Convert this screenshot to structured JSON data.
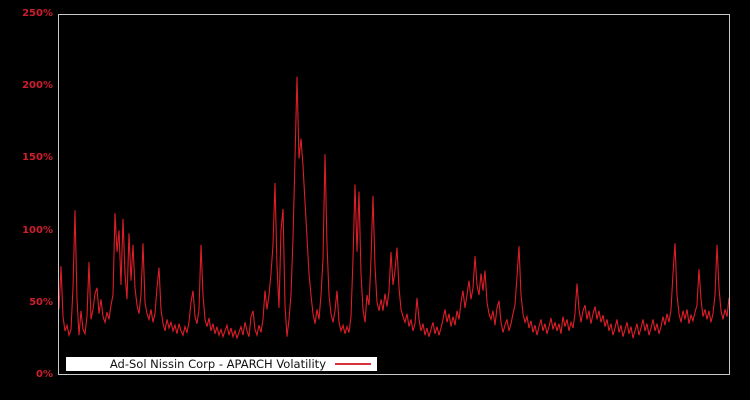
{
  "figure": {
    "background_color": "#000000",
    "plot_border_color": "#c9c9c9"
  },
  "y_axis": {
    "tick_color": "#cf1f2e",
    "ticks": [
      {
        "label": "0%",
        "value": 0
      },
      {
        "label": "50%",
        "value": 50
      },
      {
        "label": "100%",
        "value": 100
      },
      {
        "label": "150%",
        "value": 150
      },
      {
        "label": "200%",
        "value": 200
      },
      {
        "label": "250%",
        "value": 250
      }
    ]
  },
  "legend": {
    "label": "Ad-Sol Nissin Corp - APARCH Volatility",
    "background": "#ffffff",
    "text_color": "#111111",
    "sample_line_color": "#d8333c",
    "position": "bottom-left-inside"
  },
  "chart_data": {
    "type": "line",
    "ylabel": "",
    "xlabel": "",
    "ylim": [
      0,
      250
    ],
    "y_unit": "percent",
    "y_tick_labels": [
      "0%",
      "50%",
      "100%",
      "150%",
      "200%",
      "250%"
    ],
    "x_tick_labels": [],
    "grid": false,
    "legend_position": "bottom-left-inside",
    "series": [
      {
        "name": "Ad-Sol Nissin Corp - APARCH Volatility",
        "color": "#dc1e28",
        "line_width": 1,
        "values": [
          45,
          75,
          40,
          30,
          34,
          27,
          31,
          60,
          114,
          52,
          27,
          44,
          31,
          28,
          40,
          78,
          38,
          45,
          56,
          60,
          42,
          52,
          40,
          36,
          43,
          38,
          48,
          55,
          112,
          85,
          100,
          62,
          108,
          70,
          52,
          98,
          65,
          90,
          60,
          48,
          42,
          55,
          91,
          50,
          42,
          38,
          45,
          36,
          42,
          60,
          74,
          45,
          35,
          30,
          38,
          32,
          36,
          30,
          34,
          28,
          35,
          30,
          27,
          33,
          29,
          36,
          50,
          58,
          40,
          35,
          45,
          90,
          55,
          38,
          33,
          39,
          30,
          35,
          28,
          33,
          27,
          31,
          26,
          30,
          34,
          27,
          32,
          26,
          30,
          25,
          29,
          33,
          27,
          36,
          30,
          26,
          40,
          44,
          31,
          27,
          34,
          29,
          38,
          58,
          45,
          55,
          70,
          90,
          133,
          75,
          46,
          100,
          115,
          48,
          26,
          38,
          55,
          95,
          150,
          207,
          150,
          164,
          145,
          120,
          95,
          70,
          55,
          42,
          35,
          45,
          38,
          55,
          80,
          153,
          90,
          55,
          42,
          36,
          44,
          58,
          36,
          30,
          34,
          28,
          33,
          29,
          40,
          80,
          132,
          85,
          127,
          70,
          45,
          36,
          55,
          48,
          80,
          124,
          75,
          50,
          44,
          52,
          44,
          56,
          47,
          58,
          85,
          62,
          72,
          88,
          60,
          45,
          40,
          36,
          42,
          33,
          38,
          30,
          35,
          53,
          38,
          30,
          35,
          27,
          32,
          26,
          31,
          36,
          28,
          33,
          27,
          32,
          38,
          45,
          36,
          42,
          33,
          40,
          34,
          44,
          38,
          50,
          58,
          46,
          55,
          65,
          52,
          60,
          82,
          62,
          55,
          70,
          58,
          72,
          50,
          42,
          38,
          44,
          34,
          46,
          51,
          36,
          29,
          34,
          38,
          30,
          35,
          42,
          48,
          68,
          89,
          55,
          42,
          36,
          40,
          32,
          37,
          29,
          34,
          27,
          33,
          38,
          30,
          35,
          28,
          33,
          39,
          31,
          36,
          30,
          35,
          28,
          40,
          33,
          38,
          30,
          36,
          32,
          42,
          63,
          45,
          36,
          44,
          48,
          38,
          44,
          35,
          42,
          47,
          38,
          44,
          36,
          41,
          33,
          38,
          30,
          35,
          27,
          32,
          38,
          29,
          34,
          26,
          31,
          36,
          28,
          33,
          25,
          30,
          35,
          27,
          32,
          38,
          30,
          35,
          27,
          32,
          38,
          30,
          35,
          28,
          33,
          40,
          34,
          42,
          36,
          45,
          70,
          91,
          55,
          42,
          36,
          44,
          38,
          45,
          35,
          41,
          37,
          43,
          48,
          73,
          52,
          40,
          45,
          38,
          44,
          36,
          42,
          55,
          90,
          60,
          44,
          38,
          45,
          40,
          53
        ]
      }
    ]
  }
}
